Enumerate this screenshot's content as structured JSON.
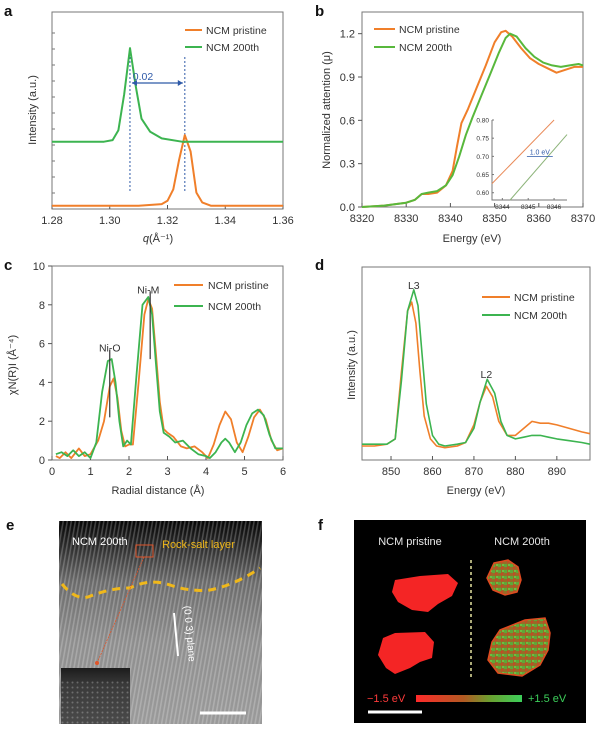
{
  "figure": {
    "panel_labels": [
      "a",
      "b",
      "c",
      "d",
      "e",
      "f"
    ],
    "colors": {
      "pristine": "#f07f2a",
      "cycled": "#3cb450",
      "blue": "#2f5aa8",
      "rocksalt": "#f0b81a",
      "inset_orange": "#e98a58",
      "inset_green": "#8db47a"
    }
  },
  "chart_data": [
    {
      "panel": "a",
      "type": "line",
      "title": "",
      "xlabel": "q (Å⁻¹)",
      "xlabel_q": "q",
      "xlabel_unit": "(Å⁻¹)",
      "ylabel": "Intensity (a.u.)",
      "xlim": [
        1.28,
        1.36
      ],
      "ylim": [
        0,
        1.2
      ],
      "xticks": [
        "1.28",
        "1.30",
        "1.32",
        "1.34",
        "1.36"
      ],
      "legend": [
        "NCM pristine",
        "NCM 200th"
      ],
      "legend_position": "top-right",
      "annotation": "0.02",
      "peak_lines": [
        1.307,
        1.326
      ],
      "series": [
        {
          "name": "NCM pristine",
          "color": "#f07f2a",
          "x": [
            1.28,
            1.31,
            1.318,
            1.32,
            1.322,
            1.324,
            1.326,
            1.328,
            1.33,
            1.332,
            1.335,
            1.36
          ],
          "y": [
            0.02,
            0.02,
            0.03,
            0.05,
            0.12,
            0.3,
            0.45,
            0.35,
            0.1,
            0.04,
            0.02,
            0.02
          ]
        },
        {
          "name": "NCM 200th",
          "color": "#3cb450",
          "x": [
            1.28,
            1.298,
            1.301,
            1.303,
            1.305,
            1.307,
            1.309,
            1.311,
            1.314,
            1.318,
            1.325,
            1.36
          ],
          "y": [
            0.41,
            0.41,
            0.42,
            0.48,
            0.7,
            0.98,
            0.75,
            0.55,
            0.47,
            0.43,
            0.41,
            0.41
          ]
        }
      ]
    },
    {
      "panel": "b",
      "type": "line",
      "title": "",
      "xlabel": "Energy (eV)",
      "ylabel": "Normalized attention (μ)",
      "xlim": [
        8320,
        8370
      ],
      "ylim": [
        0,
        1.35
      ],
      "xticks": [
        "8320",
        "8330",
        "8340",
        "8350",
        "8360",
        "8370"
      ],
      "yticks": [
        "0.0",
        "0.3",
        "0.6",
        "0.9",
        "1.2"
      ],
      "legend": [
        "NCM pristine",
        "NCM 200th"
      ],
      "legend_position": "top-left",
      "series": [
        {
          "name": "NCM pristine",
          "color": "#f07f2a",
          "x": [
            8320,
            8325,
            8330,
            8332,
            8333.5,
            8335,
            8337,
            8339,
            8340.5,
            8341.5,
            8342.5,
            8344,
            8346,
            8348,
            8350,
            8351.5,
            8352.5,
            8354,
            8356,
            8358,
            8360,
            8362,
            8364,
            8366,
            8368,
            8370
          ],
          "y": [
            0.0,
            0.01,
            0.03,
            0.05,
            0.09,
            0.09,
            0.1,
            0.15,
            0.25,
            0.42,
            0.58,
            0.68,
            0.83,
            0.98,
            1.14,
            1.21,
            1.22,
            1.18,
            1.1,
            1.03,
            0.99,
            0.96,
            0.93,
            0.95,
            0.97,
            0.97
          ]
        },
        {
          "name": "NCM 200th",
          "color": "#58b83c",
          "x": [
            8320,
            8325,
            8330,
            8332,
            8333.5,
            8335,
            8337,
            8339,
            8340.5,
            8342,
            8343.5,
            8345,
            8347,
            8349,
            8351,
            8352.5,
            8353.5,
            8355,
            8357,
            8359,
            8361,
            8363,
            8365,
            8367,
            8369,
            8370
          ],
          "y": [
            0.0,
            0.01,
            0.03,
            0.05,
            0.09,
            0.1,
            0.11,
            0.15,
            0.22,
            0.35,
            0.5,
            0.62,
            0.77,
            0.92,
            1.07,
            1.17,
            1.2,
            1.18,
            1.1,
            1.04,
            1.0,
            0.98,
            0.97,
            0.98,
            0.99,
            0.98
          ]
        }
      ],
      "inset": {
        "xlim": [
          8343.6,
          8346.5
        ],
        "ylim": [
          0.58,
          0.8
        ],
        "xticks": [
          "8344",
          "8345",
          "8346"
        ],
        "yticks": [
          "0.60",
          "0.65",
          "0.70",
          "0.75",
          "0.80"
        ],
        "annotation": "1.0 eV",
        "series": [
          {
            "name": "NCM pristine",
            "x": [
              8343.6,
              8346.0
            ],
            "y": [
              0.625,
              0.8
            ]
          },
          {
            "name": "NCM 200th",
            "x": [
              8344.3,
              8346.5
            ],
            "y": [
              0.58,
              0.76
            ]
          }
        ]
      }
    },
    {
      "panel": "c",
      "type": "line",
      "title": "",
      "xlabel": "Radial distance (Å)",
      "ylabel": "χN(R)I (Å⁻⁴)",
      "xlim": [
        0,
        6
      ],
      "ylim": [
        0,
        10
      ],
      "xticks": [
        "0",
        "1",
        "2",
        "3",
        "4",
        "5",
        "6"
      ],
      "yticks": [
        "0",
        "2",
        "4",
        "6",
        "8",
        "10"
      ],
      "legend": [
        "NCM pristine",
        "NCM 200th"
      ],
      "legend_position": "top-right",
      "annotations": [
        {
          "text": "Ni-O",
          "x": 1.5,
          "y": 5.8
        },
        {
          "text": "Ni-M",
          "x": 2.5,
          "y": 8.8
        }
      ],
      "series": [
        {
          "name": "NCM pristine",
          "color": "#f07f2a",
          "x": [
            0.1,
            0.2,
            0.35,
            0.5,
            0.7,
            0.85,
            1.0,
            1.2,
            1.35,
            1.5,
            1.6,
            1.7,
            1.8,
            1.9,
            2.0,
            2.1,
            2.25,
            2.4,
            2.5,
            2.6,
            2.7,
            2.8,
            2.9,
            3.0,
            3.15,
            3.35,
            3.5,
            3.7,
            3.9,
            4.05,
            4.2,
            4.35,
            4.5,
            4.65,
            4.8,
            4.95,
            5.1,
            5.25,
            5.4,
            5.55,
            5.7,
            5.85,
            6.0
          ],
          "y": [
            0.2,
            0.1,
            0.4,
            0.1,
            0.6,
            0.2,
            0.3,
            1.0,
            2.0,
            3.8,
            4.2,
            3.2,
            1.5,
            0.7,
            0.8,
            0.8,
            4.0,
            7.5,
            8.3,
            7.8,
            5.5,
            3.0,
            1.6,
            1.4,
            1.2,
            0.7,
            0.6,
            0.7,
            0.4,
            0.1,
            0.8,
            1.8,
            2.5,
            2.1,
            0.9,
            0.4,
            1.2,
            2.2,
            2.6,
            2.1,
            1.0,
            0.5,
            0.6
          ]
        },
        {
          "name": "NCM 200th",
          "color": "#3cb450",
          "x": [
            0.1,
            0.25,
            0.4,
            0.55,
            0.7,
            0.85,
            1.0,
            1.15,
            1.3,
            1.45,
            1.55,
            1.65,
            1.75,
            1.85,
            1.95,
            2.05,
            2.2,
            2.35,
            2.5,
            2.6,
            2.7,
            2.8,
            2.9,
            3.05,
            3.2,
            3.4,
            3.6,
            3.8,
            4.0,
            4.1,
            4.25,
            4.4,
            4.5,
            4.6,
            4.75,
            4.9,
            5.05,
            5.2,
            5.35,
            5.5,
            5.65,
            5.8,
            6.0
          ],
          "y": [
            0.3,
            0.4,
            0.2,
            0.5,
            0.2,
            0.4,
            0.1,
            0.9,
            3.5,
            5.1,
            5.2,
            4.0,
            2.0,
            0.7,
            1.0,
            0.8,
            4.5,
            8.0,
            8.4,
            7.5,
            5.0,
            2.5,
            1.4,
            1.2,
            0.9,
            1.0,
            0.6,
            0.3,
            0.2,
            0.1,
            0.4,
            0.9,
            1.1,
            0.9,
            0.4,
            0.9,
            1.8,
            2.4,
            2.6,
            2.3,
            1.3,
            0.6,
            0.6
          ]
        }
      ]
    },
    {
      "panel": "d",
      "type": "line",
      "title": "",
      "xlabel": "Energy (eV)",
      "ylabel": "Intensity (a.u.)",
      "xlim": [
        843,
        898
      ],
      "ylim": [
        0,
        1.1
      ],
      "xticks": [
        "850",
        "860",
        "870",
        "880",
        "890"
      ],
      "legend": [
        "NCM pristine",
        "NCM 200th"
      ],
      "legend_position": "top-right",
      "annotations": [
        {
          "text": "L3",
          "x": 855.5
        },
        {
          "text": "L2",
          "x": 873
        }
      ],
      "series": [
        {
          "name": "NCM pristine",
          "color": "#f07f2a",
          "x": [
            843,
            846,
            849,
            851,
            852.5,
            854,
            855,
            856,
            857,
            858,
            859.5,
            861,
            863,
            866,
            868,
            870,
            871.5,
            873,
            874.5,
            876,
            878,
            880,
            882,
            884,
            886,
            888,
            890,
            893,
            896,
            898
          ],
          "y": [
            0.08,
            0.08,
            0.09,
            0.12,
            0.5,
            0.85,
            0.9,
            0.78,
            0.5,
            0.25,
            0.12,
            0.08,
            0.07,
            0.08,
            0.1,
            0.2,
            0.33,
            0.42,
            0.36,
            0.22,
            0.14,
            0.14,
            0.18,
            0.22,
            0.21,
            0.21,
            0.2,
            0.18,
            0.16,
            0.15
          ]
        },
        {
          "name": "NCM 200th",
          "color": "#3cb450",
          "x": [
            843,
            846,
            849,
            851,
            852.5,
            854,
            855.5,
            856.5,
            857.5,
            858.5,
            860,
            861.5,
            863,
            866,
            868,
            870,
            871.5,
            873.2,
            875,
            876.5,
            878,
            880,
            882,
            884,
            886,
            888,
            890,
            893,
            896,
            898
          ],
          "y": [
            0.09,
            0.09,
            0.09,
            0.12,
            0.45,
            0.85,
            0.97,
            0.88,
            0.6,
            0.32,
            0.14,
            0.09,
            0.08,
            0.09,
            0.1,
            0.18,
            0.33,
            0.46,
            0.38,
            0.22,
            0.14,
            0.12,
            0.13,
            0.14,
            0.14,
            0.13,
            0.12,
            0.11,
            0.1,
            0.09
          ]
        }
      ]
    }
  ],
  "panel_e": {
    "label_sample": "NCM 200th",
    "label_layer": "Rock-salt layer",
    "label_plane": "(0 0 3) plane"
  },
  "panel_f": {
    "label_left": "NCM pristine",
    "label_right": "NCM 200th",
    "scale_min": "−1.5 eV",
    "scale_max": "+1.5 eV",
    "scale_colors": [
      "#ff2a2a",
      "#3ccf5a"
    ]
  }
}
